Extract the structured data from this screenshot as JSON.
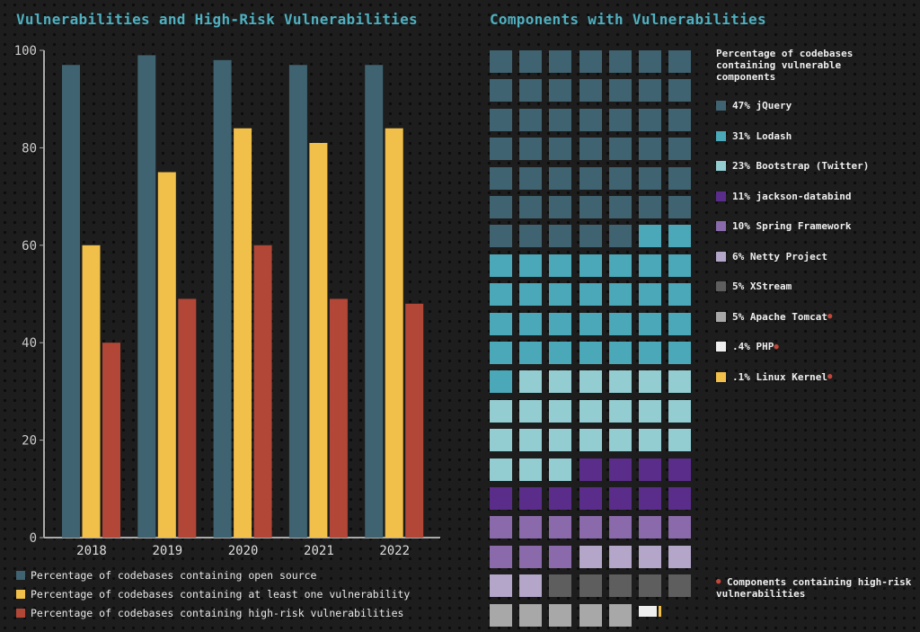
{
  "chart_data": [
    {
      "type": "bar",
      "title": "Vulnerabilities and High-Risk Vulnerabilities",
      "categories": [
        "2018",
        "2019",
        "2020",
        "2021",
        "2022"
      ],
      "ylim": [
        0,
        100
      ],
      "yticks": [
        "0",
        "20",
        "40",
        "60",
        "80",
        "100"
      ],
      "series": [
        {
          "name": "Percentage of codebases containing open source",
          "color": "#3f6370",
          "values": [
            97,
            99,
            98,
            97,
            97
          ]
        },
        {
          "name": "Percentage of codebases containing at least one vulnerability",
          "color": "#f1c04a",
          "values": [
            60,
            75,
            84,
            81,
            84
          ]
        },
        {
          "name": "Percentage of codebases containing high-risk vulnerabilities",
          "color": "#b24637",
          "values": [
            40,
            49,
            60,
            49,
            48
          ]
        }
      ],
      "legend": "bottom"
    },
    {
      "type": "waffle",
      "title": "Components with Vulnerabilities",
      "legend_title": "Percentage of codebases containing vulnerable components",
      "items": [
        {
          "label": "47% jQuery",
          "value": 47,
          "color": "#3f6370",
          "high_risk": false
        },
        {
          "label": "31% Lodash",
          "value": 31,
          "color": "#4aa8b8",
          "high_risk": false
        },
        {
          "label": "23% Bootstrap (Twitter)",
          "value": 23,
          "color": "#93cdd2",
          "high_risk": false
        },
        {
          "label": "11% jackson-databind",
          "value": 11,
          "color": "#5a2d8a",
          "high_risk": false
        },
        {
          "label": "10% Spring Framework",
          "value": 10,
          "color": "#8a6aaa",
          "high_risk": false
        },
        {
          "label": "6% Netty Project",
          "value": 6,
          "color": "#b3a6c9",
          "high_risk": false
        },
        {
          "label": "5% XStream",
          "value": 5,
          "color": "#5e5e5e",
          "high_risk": false
        },
        {
          "label": "5% Apache Tomcat",
          "value": 5,
          "color": "#a8a8a8",
          "high_risk": true
        },
        {
          "label": ".4% PHP",
          "value": 0.4,
          "color": "#eeeeee",
          "high_risk": true
        },
        {
          "label": ".1% Linux Kernel",
          "value": 0.1,
          "color": "#f1c04a",
          "high_risk": true
        }
      ],
      "note": "Components containing high-risk vulnerabilities",
      "note_color": "#c0473a"
    }
  ]
}
